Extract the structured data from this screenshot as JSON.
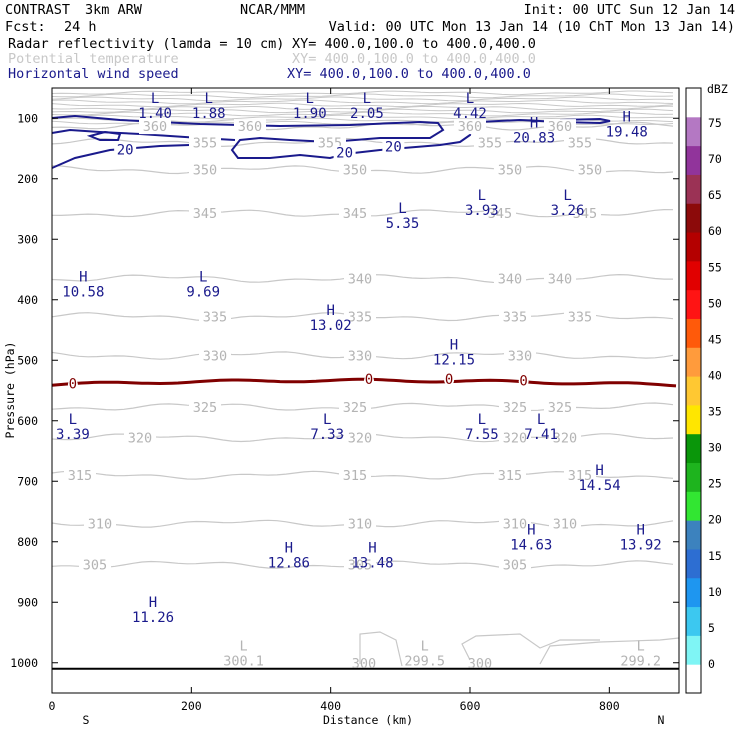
{
  "header": {
    "project": "CONTRAST",
    "model": "3km ARW",
    "org": "NCAR/MMM",
    "init": "Init: 00 UTC Sun 12 Jan 14",
    "fcst_label": "Fcst:",
    "fcst_value": "24 h",
    "valid": "Valid: 00 UTC Mon 13 Jan 14 (10 ChT Mon 13 Jan 14)"
  },
  "fields": [
    {
      "name": "Radar reflectivity (lamda = 10 cm)",
      "xy": "XY= 400.0,100.0 to 400.0,400.0",
      "color": "#000000"
    },
    {
      "name": "Potential temperature",
      "xy": "XY= 400.0,100.0 to 400.0,400.0",
      "color": "#c8c8c8"
    },
    {
      "name": "Horizontal wind speed",
      "xy": "XY= 400.0,100.0 to 400.0,400.0",
      "color": "#1a1a8c"
    }
  ],
  "colorbar": {
    "unit": "dBZ",
    "levels": [
      "0",
      "5",
      "10",
      "15",
      "20",
      "25",
      "30",
      "35",
      "40",
      "45",
      "50",
      "55",
      "60",
      "65",
      "70",
      "75"
    ],
    "colors": [
      "#ffffff",
      "#7ff5f5",
      "#3cc8f0",
      "#1e96f0",
      "#2d6ed2",
      "#3c82be",
      "#32e632",
      "#1eb41e",
      "#0a960a",
      "#ffe600",
      "#ffc832",
      "#ff9b3c",
      "#ff5a0a",
      "#ff1414",
      "#e10000",
      "#b40000",
      "#8c0a0a",
      "#9b3255",
      "#91349b",
      "#b478c3",
      "#ffffff"
    ]
  },
  "chart_data": {
    "type": "contour-cross-section",
    "xlabel": "Distance (km)",
    "ylabel": "Pressure (hPa)",
    "xlim": [
      0,
      900
    ],
    "ylim": [
      1050,
      50
    ],
    "x_ticks": [
      "0",
      "200",
      "400",
      "600",
      "800"
    ],
    "y_ticks": [
      "100",
      "200",
      "300",
      "400",
      "500",
      "600",
      "700",
      "800",
      "900",
      "1000"
    ],
    "direction_left": "S",
    "direction_right": "N",
    "theta_levels": [
      {
        "label": "360",
        "p": 113
      },
      {
        "label": "355",
        "p": 140
      },
      {
        "label": "350",
        "p": 185
      },
      {
        "label": "345",
        "p": 257
      },
      {
        "label": "340",
        "p": 365
      },
      {
        "label": "335",
        "p": 428
      },
      {
        "label": "330",
        "p": 492
      },
      {
        "label": "325",
        "p": 577
      },
      {
        "label": "320",
        "p": 628
      },
      {
        "label": "315",
        "p": 690
      },
      {
        "label": "310",
        "p": 770
      },
      {
        "label": "305",
        "p": 838
      },
      {
        "label": "300",
        "p": 1010
      }
    ],
    "wind_contour_labels": [
      {
        "label": "20",
        "x": 105,
        "p": 152
      },
      {
        "label": "20",
        "x": 420,
        "p": 157
      },
      {
        "label": "20",
        "x": 490,
        "p": 147
      }
    ],
    "reflectivity_contour_labels": [
      {
        "label": "0",
        "x": 30,
        "p": 540
      },
      {
        "label": "0",
        "x": 455,
        "p": 533
      },
      {
        "label": "0",
        "x": 570,
        "p": 533
      },
      {
        "label": "0",
        "x": 677,
        "p": 535
      }
    ],
    "wind_extrema": [
      {
        "type": "L",
        "value": "1.40",
        "x": 148,
        "p": 75
      },
      {
        "type": "L",
        "value": "1.88",
        "x": 225,
        "p": 75
      },
      {
        "type": "L",
        "value": "1.90",
        "x": 370,
        "p": 75
      },
      {
        "type": "L",
        "value": "2.05",
        "x": 452,
        "p": 75
      },
      {
        "type": "L",
        "value": "4.42",
        "x": 600,
        "p": 75
      },
      {
        "type": "H",
        "value": "20.83",
        "x": 692,
        "p": 115
      },
      {
        "type": "H",
        "value": "19.48",
        "x": 825,
        "p": 105
      },
      {
        "type": "L",
        "value": "3.93",
        "x": 617,
        "p": 235
      },
      {
        "type": "L",
        "value": "5.35",
        "x": 503,
        "p": 257
      },
      {
        "type": "L",
        "value": "3.26",
        "x": 740,
        "p": 235
      },
      {
        "type": "H",
        "value": "10.58",
        "x": 45,
        "p": 370
      },
      {
        "type": "L",
        "value": "9.69",
        "x": 217,
        "p": 370
      },
      {
        "type": "H",
        "value": "13.02",
        "x": 400,
        "p": 425
      },
      {
        "type": "H",
        "value": "12.15",
        "x": 577,
        "p": 482
      },
      {
        "type": "L",
        "value": "3.39",
        "x": 30,
        "p": 605
      },
      {
        "type": "L",
        "value": "7.33",
        "x": 395,
        "p": 605
      },
      {
        "type": "L",
        "value": "7.55",
        "x": 617,
        "p": 605
      },
      {
        "type": "L",
        "value": "7.41",
        "x": 702,
        "p": 605
      },
      {
        "type": "H",
        "value": "14.54",
        "x": 786,
        "p": 690
      },
      {
        "type": "H",
        "value": "14.63",
        "x": 688,
        "p": 788
      },
      {
        "type": "H",
        "value": "13.92",
        "x": 845,
        "p": 788
      },
      {
        "type": "H",
        "value": "12.86",
        "x": 340,
        "p": 818
      },
      {
        "type": "H",
        "value": "13.48",
        "x": 460,
        "p": 818
      },
      {
        "type": "H",
        "value": "11.26",
        "x": 145,
        "p": 908
      }
    ],
    "theta_extrema": [
      {
        "type": "L",
        "value": "300.1",
        "x": 275,
        "p": 980
      },
      {
        "type": "L",
        "value": "299.5",
        "x": 535,
        "p": 980
      },
      {
        "type": "L",
        "value": "299.2",
        "x": 845,
        "p": 980
      }
    ]
  }
}
